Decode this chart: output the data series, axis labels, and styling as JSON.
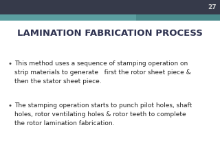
{
  "title": "LAMINATION FABRICATION PROCESS",
  "slide_number": "27",
  "background_color": "#ffffff",
  "title_color": "#2e3250",
  "text_color": "#222222",
  "bullet_color": "#444444",
  "header_top_color": "#363a4a",
  "header_teal_left_color": "#5b9ea0",
  "header_teal_right_color": "#4a8a8c",
  "slide_number_color": "#cccccc",
  "bullets": [
    "This method uses a sequence of stamping operation on\nstrip materials to generate   first the rotor sheet piece &\nthen the stator sheet piece.",
    "The stamping operation starts to punch pilot holes, shaft\nholes, rotor ventilating holes & rotor teeth to complete\nthe rotor lamination fabrication."
  ],
  "title_fontsize": 9.5,
  "body_fontsize": 6.5,
  "slide_number_fontsize": 6.5
}
